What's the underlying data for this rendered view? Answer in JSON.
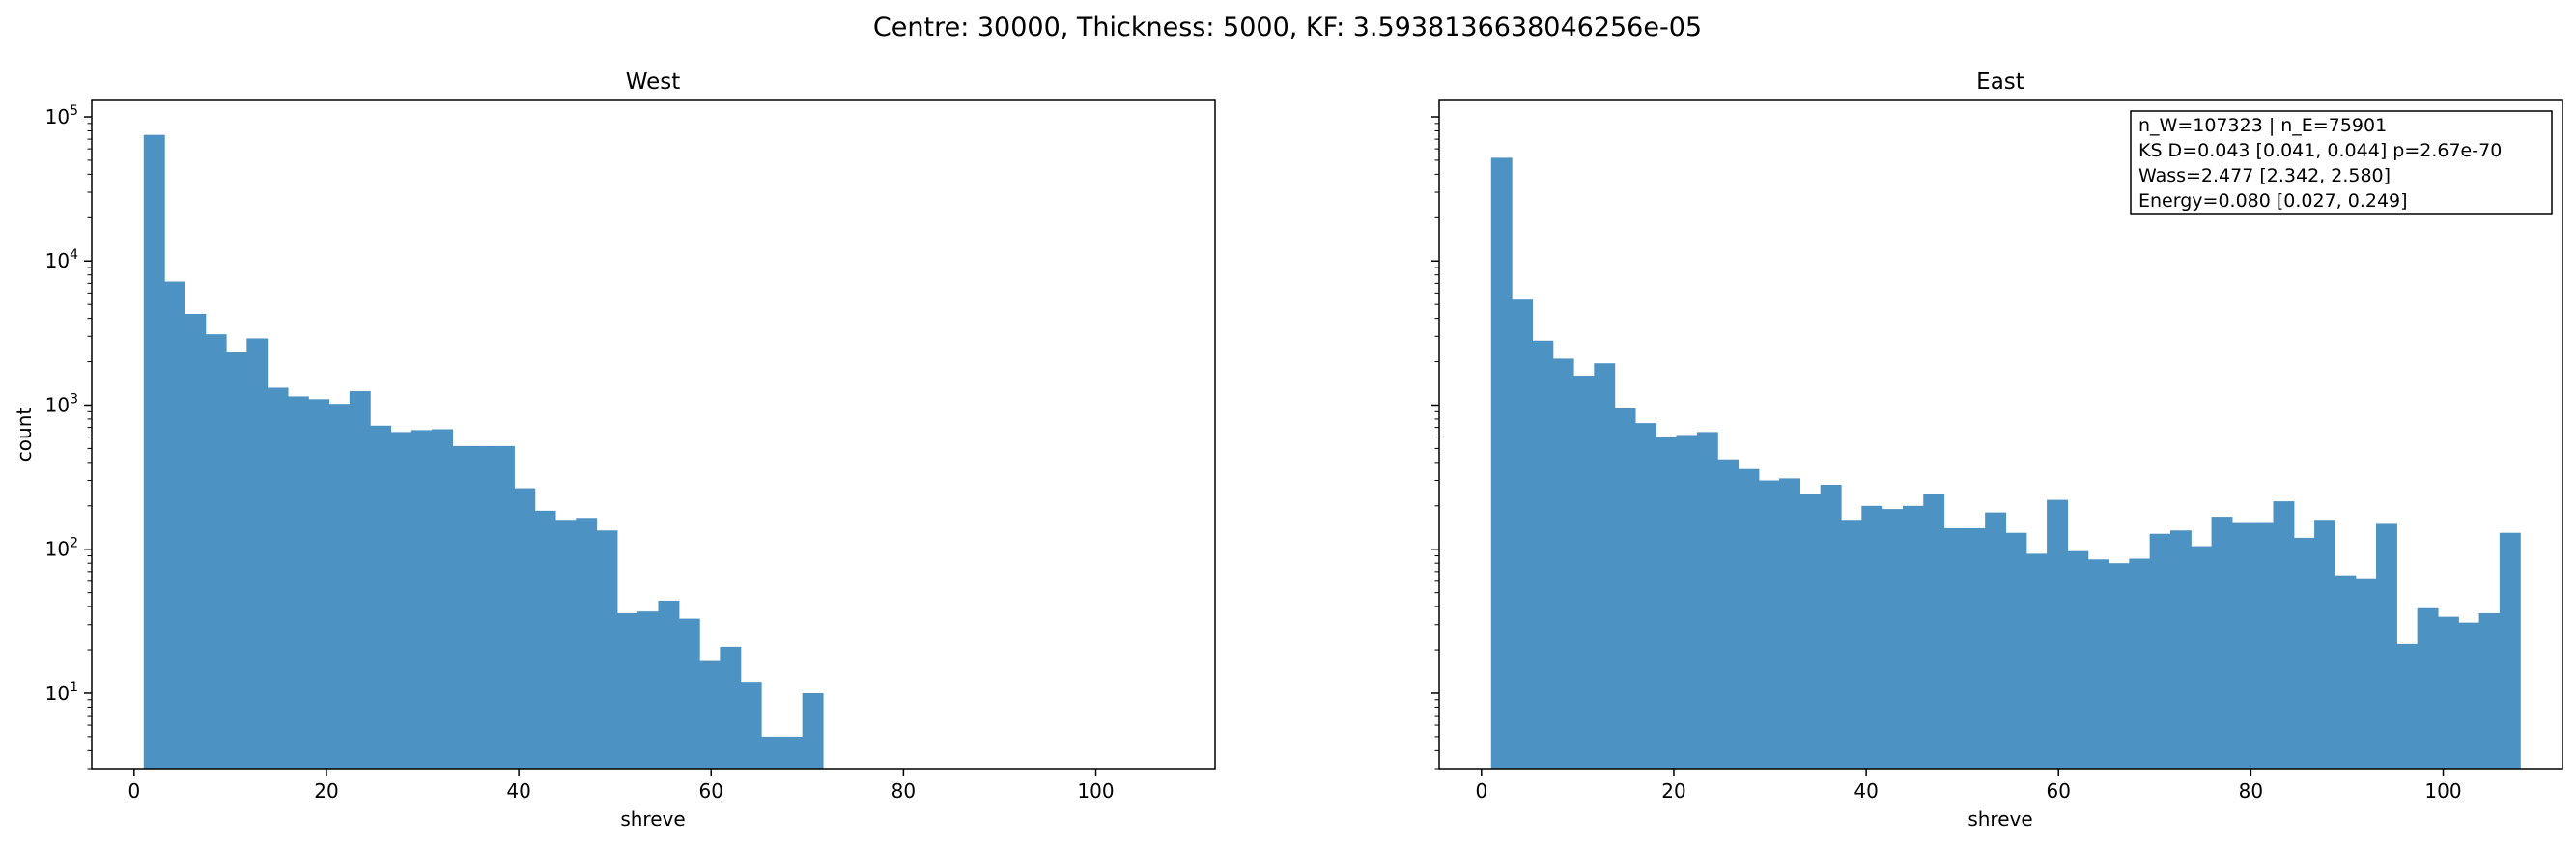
{
  "suptitle": "Centre: 30000, Thickness: 5000, KF: 3.5938136638046256e-05",
  "chart_data": [
    {
      "type": "bar",
      "title": "West",
      "xlabel": "shreve",
      "ylabel": "count",
      "yscale": "log",
      "xlim": [
        -4.4,
        112.4
      ],
      "ylim": [
        3,
        130000
      ],
      "xticks": [
        0,
        20,
        40,
        60,
        80,
        100
      ],
      "xtick_labels": [
        "0",
        "20",
        "40",
        "60",
        "80",
        "100"
      ],
      "yticks": [
        10,
        100,
        1000,
        10000,
        100000
      ],
      "ytick_labels": [
        "10^1",
        "10^2",
        "10^3",
        "10^4",
        "10^5"
      ],
      "bar_color": "#4C92C3",
      "bin_edges": [
        1.0,
        3.14,
        5.28,
        7.42,
        9.56,
        11.7,
        13.84,
        15.98,
        18.12,
        20.26,
        22.4,
        24.54,
        26.68,
        28.82,
        30.96,
        33.1,
        35.24,
        37.38,
        39.52,
        41.66,
        43.8,
        45.94,
        48.08,
        50.22,
        52.36,
        54.5,
        56.64,
        58.78,
        60.92,
        63.06,
        65.2,
        67.34,
        69.48,
        71.62
      ],
      "values": [
        75000,
        7200,
        4300,
        3100,
        2350,
        2900,
        1320,
        1150,
        1100,
        1020,
        1250,
        720,
        650,
        670,
        680,
        520,
        520,
        520,
        265,
        185,
        160,
        165,
        135,
        36,
        37,
        44,
        33,
        17,
        21,
        12,
        5,
        5,
        10
      ]
    },
    {
      "type": "bar",
      "title": "East",
      "xlabel": "shreve",
      "ylabel": "",
      "yscale": "log",
      "xlim": [
        -4.4,
        112.4
      ],
      "ylim": [
        3,
        130000
      ],
      "xticks": [
        0,
        20,
        40,
        60,
        80,
        100
      ],
      "xtick_labels": [
        "0",
        "20",
        "40",
        "60",
        "80",
        "100"
      ],
      "bar_color": "#4C92C3",
      "bin_edges": [
        1.0,
        3.14,
        5.28,
        7.42,
        9.56,
        11.7,
        13.84,
        15.98,
        18.12,
        20.26,
        22.4,
        24.54,
        26.68,
        28.82,
        30.96,
        33.1,
        35.24,
        37.38,
        39.52,
        41.66,
        43.8,
        45.94,
        48.08,
        50.22,
        52.36,
        54.5,
        56.64,
        58.78,
        60.92,
        63.06,
        65.2,
        67.34,
        69.48,
        71.62,
        73.76,
        75.9,
        78.04,
        80.18,
        82.32,
        84.46,
        86.6,
        88.74,
        90.88,
        93.02,
        95.16,
        97.3,
        99.44,
        101.58,
        103.72,
        105.86,
        108.0
      ],
      "values": [
        52000,
        5400,
        2800,
        2100,
        1600,
        1950,
        950,
        750,
        600,
        620,
        650,
        420,
        360,
        300,
        310,
        240,
        280,
        160,
        200,
        190,
        200,
        240,
        140,
        140,
        180,
        130,
        93,
        220,
        97,
        85,
        80,
        86,
        128,
        135,
        105,
        168,
        152,
        152,
        215,
        120,
        160,
        66,
        62,
        150,
        22,
        39,
        34,
        31,
        36,
        130
      ],
      "annotation": [
        "n_W=107323 | n_E=75901",
        "KS D=0.043 [0.041, 0.044]  p=2.67e-70",
        "Wass=2.477 [2.342, 2.580]",
        "Energy=0.080 [0.027, 0.249]"
      ],
      "annotation_placement": "top-right"
    }
  ]
}
